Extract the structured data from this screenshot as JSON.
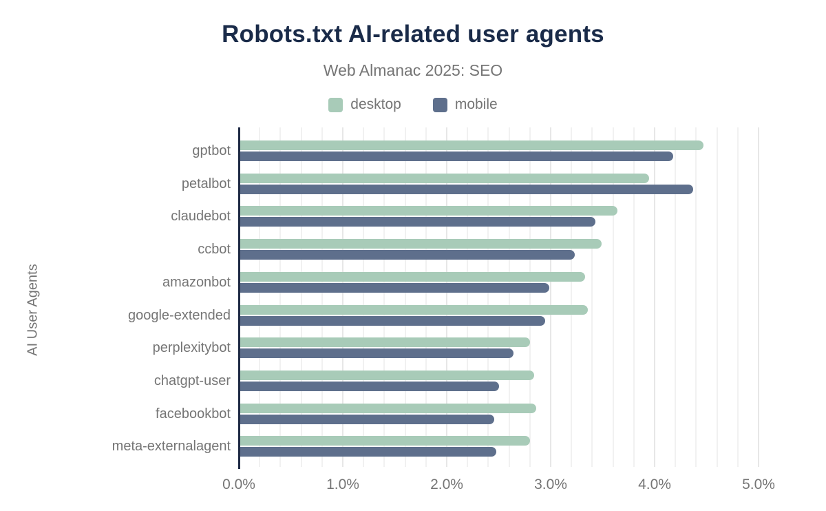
{
  "chart": {
    "title": "Robots.txt AI-related user agents",
    "subtitle": "Web Almanac 2025: SEO",
    "ylabel": "AI User Agents"
  },
  "chart_data": {
    "type": "bar",
    "orientation": "horizontal",
    "title": "Robots.txt AI-related user agents",
    "subtitle": "Web Almanac 2025: SEO",
    "xlabel": "",
    "ylabel": "AI User Agents",
    "categories": [
      "gptbot",
      "petalbot",
      "claudebot",
      "ccbot",
      "amazonbot",
      "google-extended",
      "perplexitybot",
      "chatgpt-user",
      "facebookbot",
      "meta-externalagent"
    ],
    "series": [
      {
        "name": "desktop",
        "color": "#a8cbb8",
        "values": [
          4.47,
          3.95,
          3.64,
          3.49,
          3.33,
          3.36,
          2.8,
          2.84,
          2.86,
          2.8
        ]
      },
      {
        "name": "mobile",
        "color": "#5e6f8c",
        "values": [
          4.18,
          4.37,
          3.43,
          3.23,
          2.99,
          2.95,
          2.64,
          2.5,
          2.46,
          2.48
        ]
      }
    ],
    "value_unit": "%",
    "xlim": [
      0,
      5.0
    ],
    "x_tick_step": 1.0,
    "x_tick_labels": [
      "0.0%",
      "1.0%",
      "2.0%",
      "3.0%",
      "4.0%",
      "5.0%"
    ],
    "minor_grid_step": 0.2,
    "grid": true,
    "legend_position": "top"
  },
  "colors": {
    "title": "#1a2b49",
    "subtitle": "#757575",
    "label": "#757575",
    "axis_line": "#1f2b45",
    "grid_minor": "#f1f1f1",
    "grid_major": "#e7e7e7",
    "desktop": "#a8cbb8",
    "mobile": "#5e6f8c",
    "background": "#ffffff"
  }
}
